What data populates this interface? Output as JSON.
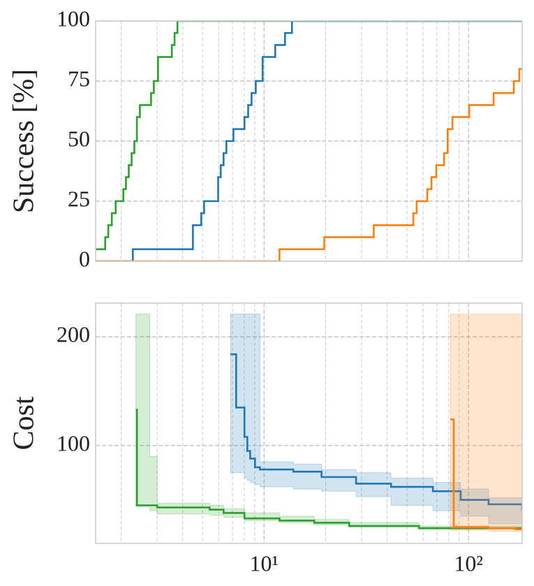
{
  "chart_data": [
    {
      "type": "step",
      "y_label": "Success [%]",
      "xscale": "log",
      "grid": true,
      "xlim": [
        1.5,
        183
      ],
      "xticks": [
        10,
        100
      ],
      "xminorticks": [
        2,
        3,
        4,
        5,
        6,
        7,
        8,
        9,
        20,
        30,
        40,
        50,
        60,
        70,
        80,
        90
      ],
      "ylim": [
        0,
        100
      ],
      "yticks": [
        0,
        25,
        50,
        75,
        100
      ],
      "series": [
        {
          "color": "#2ca02c",
          "x": [
            1.5,
            1.67,
            1.73,
            1.8,
            1.88,
            2.05,
            2.11,
            2.18,
            2.25,
            2.32,
            2.39,
            2.47,
            2.8,
            2.89,
            3.03,
            3.54,
            3.65,
            3.77,
            183
          ],
          "values": [
            5,
            10,
            15,
            20,
            25,
            30,
            35,
            40,
            45,
            50,
            60,
            65,
            70,
            75,
            85,
            90,
            95,
            100,
            100
          ]
        },
        {
          "color": "#1f77b4",
          "x": [
            1.5,
            2.28,
            4.49,
            4.93,
            5.09,
            5.96,
            6.14,
            6.34,
            6.54,
            7.08,
            8.02,
            8.36,
            8.69,
            9.11,
            9.84,
            11.34,
            12.66,
            13.7,
            183
          ],
          "values": [
            0,
            5,
            15,
            20,
            25,
            35,
            40,
            45,
            50,
            55,
            60,
            65,
            70,
            75,
            85,
            90,
            95,
            100,
            100
          ]
        },
        {
          "color": "#ff7f0e",
          "x": [
            1.5,
            11.9,
            19.7,
            34.4,
            53.7,
            55.8,
            62.9,
            65.9,
            69.6,
            76.0,
            79.1,
            83.5,
            100.8,
            132.7,
            166.7,
            177.4,
            183
          ],
          "values": [
            0,
            5,
            10,
            15,
            20,
            25,
            30,
            35,
            40,
            45,
            55,
            60,
            65,
            70,
            75,
            80,
            80
          ]
        }
      ]
    },
    {
      "type": "step_band",
      "y_label": "Cost",
      "xscale": "log",
      "grid": true,
      "xlim": [
        1.5,
        183
      ],
      "xticks": [
        {
          "value": 10,
          "label": "10¹"
        },
        {
          "value": 100,
          "label": "10²"
        }
      ],
      "xminorticks": [
        2,
        3,
        4,
        5,
        6,
        7,
        8,
        9,
        20,
        30,
        40,
        50,
        60,
        70,
        80,
        90
      ],
      "ylim": [
        10,
        231
      ],
      "yticks": [
        100,
        200
      ],
      "series": [
        {
          "color": "#2ca02c",
          "x": [
            2.36,
            2.39,
            2.76,
            3.0,
            5.42,
            6.34,
            8.02,
            11.9,
            17.6,
            26.1,
            57.3,
            183
          ],
          "values": [
            133,
            45,
            45,
            43,
            41,
            38,
            33,
            31,
            29,
            26,
            24,
            22
          ],
          "upper": [
            221,
            221,
            90,
            47,
            45,
            42,
            38,
            35,
            32,
            29,
            26,
            23
          ],
          "lower": [
            44,
            44,
            40,
            37,
            36,
            34,
            31,
            29,
            27,
            25,
            23,
            21
          ]
        },
        {
          "color": "#1f77b4",
          "x": [
            6.85,
            7.3,
            8.02,
            8.28,
            8.55,
            9.03,
            9.55,
            13.9,
            19.1,
            28.2,
            41.8,
            67.0,
            91.6,
            125.5,
            183
          ],
          "values": [
            184,
            135,
            108,
            95,
            88,
            80,
            78,
            76,
            71,
            65,
            62,
            58,
            50,
            46,
            40
          ],
          "upper": [
            221,
            221,
            221,
            221,
            221,
            221,
            85,
            83,
            78,
            75,
            70,
            66,
            60,
            52,
            48
          ],
          "lower": [
            75,
            75,
            70,
            68,
            66,
            64,
            62,
            60,
            58,
            53,
            45,
            40,
            35,
            28,
            22
          ]
        },
        {
          "color": "#ff7f0e",
          "x": [
            81.5,
            84.7,
            125.5,
            169.4,
            183
          ],
          "values": [
            124,
            25,
            24,
            23,
            22
          ],
          "upper": [
            221,
            221,
            221,
            221,
            23
          ],
          "lower": [
            22,
            22,
            21,
            21,
            21
          ]
        }
      ]
    }
  ]
}
